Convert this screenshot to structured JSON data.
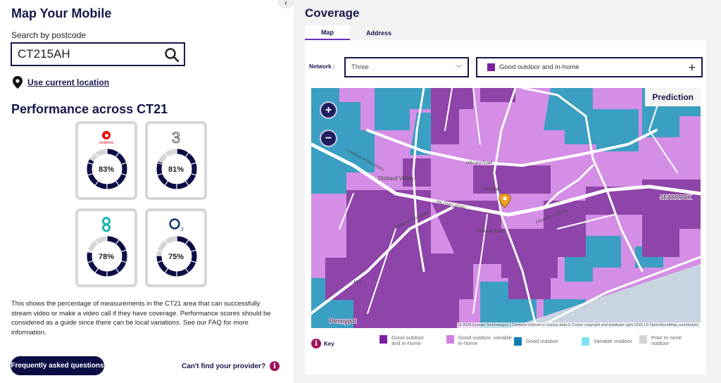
{
  "left": {
    "title": "Map Your Mobile",
    "search_label": "Search by postcode",
    "search_value": "CT215AH",
    "location_link": "Use current location",
    "performance_title": "Performance across CT21",
    "operators": [
      {
        "name": "vodafone",
        "logo_text": "vodafone",
        "percent": 83,
        "label": "83%"
      },
      {
        "name": "three",
        "logo_text": "3",
        "percent": 81,
        "label": "81%"
      },
      {
        "name": "ee",
        "logo_text": "EE",
        "percent": 78,
        "label": "78%"
      },
      {
        "name": "o2",
        "logo_text": "O2",
        "percent": 75,
        "label": "75%"
      }
    ],
    "description": "This shows the percentage of measurements in the CT21 area that can successfully stream video or make a video call if they have coverage. Performance scores should be considered as a guide since there can be local variations. See our FAQ for more information.",
    "faq_button": "Frequently asked questions",
    "cant_find": "Can't find your provider?"
  },
  "coverage": {
    "title": "Coverage",
    "tabs": [
      {
        "label": "Map",
        "active": true
      },
      {
        "label": "Address",
        "active": false
      }
    ],
    "network_label": "Network :",
    "network_value": "Three",
    "filter_value": "Good outdoor and in-home",
    "prediction_label": "Prediction",
    "zoom_in": "+",
    "zoom_out": "−",
    "attribution": "© 2025 Europa Technologies | Contains Ordnance Survey data © Crown copyright and database right 2025 | © OpenStreetMap contributors",
    "map_labels": [
      "Dichard Valley",
      "HYTHE",
      "MILITARY ROAD",
      "LONDON ROAD (A261)",
      "DYMCHURCH ROAD",
      "PROSPECT ROAD",
      "Hillcrest Road",
      "Portland Road",
      "SEABROOK",
      "Pennypot",
      "A259"
    ],
    "key_title": "Key",
    "key": [
      {
        "label": "Good outdoor and in-home",
        "color": "#7b1fa2"
      },
      {
        "label": "Good outdoor, variable in-home",
        "color": "#cf7fe6"
      },
      {
        "label": "Good outdoor",
        "color": "#0e7fb0"
      },
      {
        "label": "Variable outdoor",
        "color": "#7fe3f0"
      },
      {
        "label": "Poor to none outdoor",
        "color": "#d3d3d3"
      }
    ]
  },
  "colors": {
    "navy": "#0c0c45",
    "accent": "#6a2fc0",
    "info": "#a0125e"
  }
}
